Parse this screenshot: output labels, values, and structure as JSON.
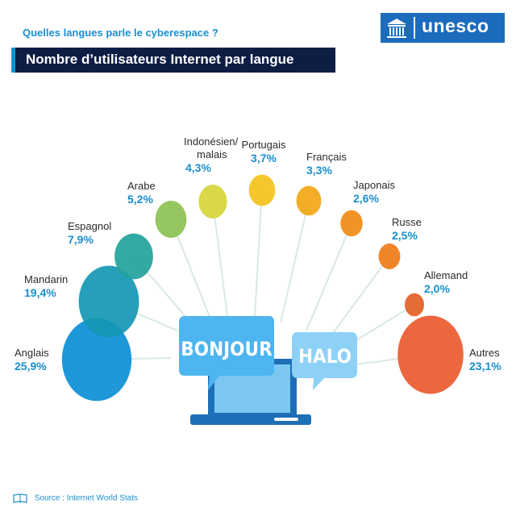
{
  "header": {
    "subtitle": "Quelles langues parle le cyberespace ?",
    "title": "Nombre d’utilisateurs Internet par langue"
  },
  "logo": {
    "text": "unesco"
  },
  "bubbles": {
    "left": "BONJOUR",
    "right": "HALO"
  },
  "footer": {
    "source": "Source : Internet World Stats"
  },
  "chart_data": {
    "type": "bubble",
    "unit": "%",
    "categories": [
      "Anglais",
      "Mandarin",
      "Espagnol",
      "Arabe",
      "Indonésien/ malais",
      "Portugais",
      "Français",
      "Japonais",
      "Russe",
      "Allemand",
      "Autres"
    ],
    "values": [
      25.9,
      19.4,
      7.9,
      5.2,
      4.3,
      3.7,
      3.3,
      2.6,
      2.5,
      2.0,
      23.1
    ],
    "value_labels": [
      "25,9%",
      "19,4%",
      "7,9%",
      "5,2%",
      "4,3%",
      "3,7%",
      "3,3%",
      "2,6%",
      "2,5%",
      "2,0%",
      "23,1%"
    ],
    "colors": [
      "#0b8fd6",
      "#1597b4",
      "#22a29c",
      "#8cc152",
      "#d5d53a",
      "#f5c21b",
      "#f2a614",
      "#f08b12",
      "#ee7b17",
      "#e25f26",
      "#ea5a2e"
    ],
    "accent": "#1a8fd0"
  }
}
